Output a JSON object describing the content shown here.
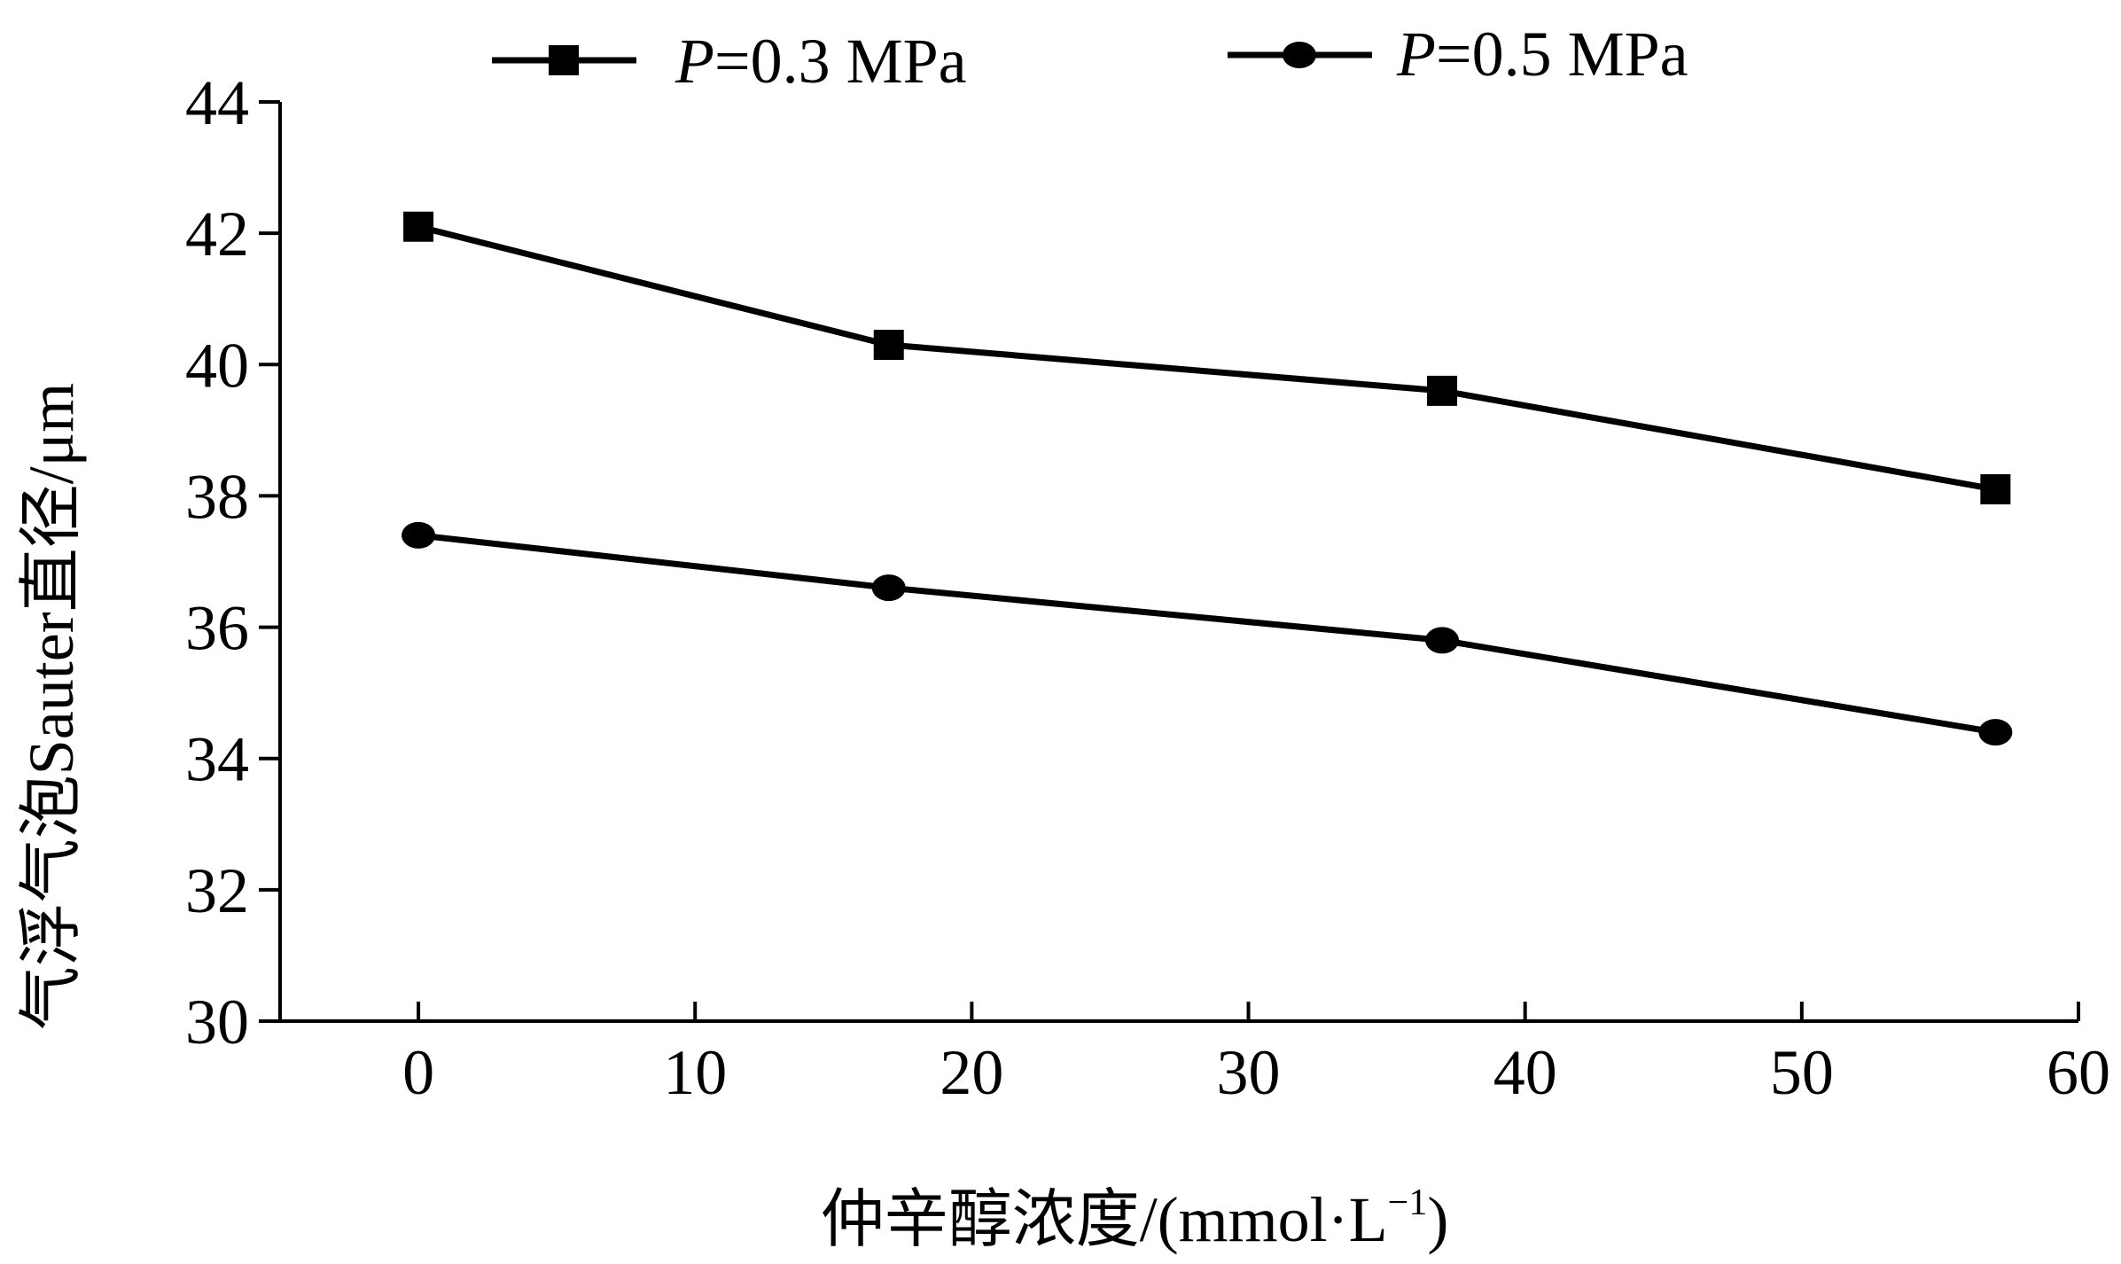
{
  "chart_data": {
    "type": "line",
    "title": "",
    "xlabel": "仲辛醇浓度/(mmol·L",
    "xlabel_sup": "−1",
    "xlabel_suffix": ")",
    "ylabel": "气浮气泡Sauter直径/μm",
    "xlim": [
      -5,
      60
    ],
    "ylim": [
      30,
      44
    ],
    "xticks": [
      0,
      10,
      20,
      30,
      40,
      50,
      60
    ],
    "yticks": [
      30,
      32,
      34,
      36,
      38,
      40,
      42,
      44
    ],
    "grid": false,
    "legend_position": "top",
    "line_color": "#000000",
    "series": [
      {
        "name_prefix": "P",
        "name_suffix": "=0.3 MPa",
        "marker": "square",
        "x": [
          0,
          17,
          37,
          57
        ],
        "y": [
          42.1,
          40.3,
          39.6,
          38.1
        ]
      },
      {
        "name_prefix": "P",
        "name_suffix": "=0.5 MPa",
        "marker": "circle",
        "x": [
          0,
          17,
          37,
          57
        ],
        "y": [
          37.4,
          36.6,
          35.8,
          34.4
        ]
      }
    ]
  }
}
